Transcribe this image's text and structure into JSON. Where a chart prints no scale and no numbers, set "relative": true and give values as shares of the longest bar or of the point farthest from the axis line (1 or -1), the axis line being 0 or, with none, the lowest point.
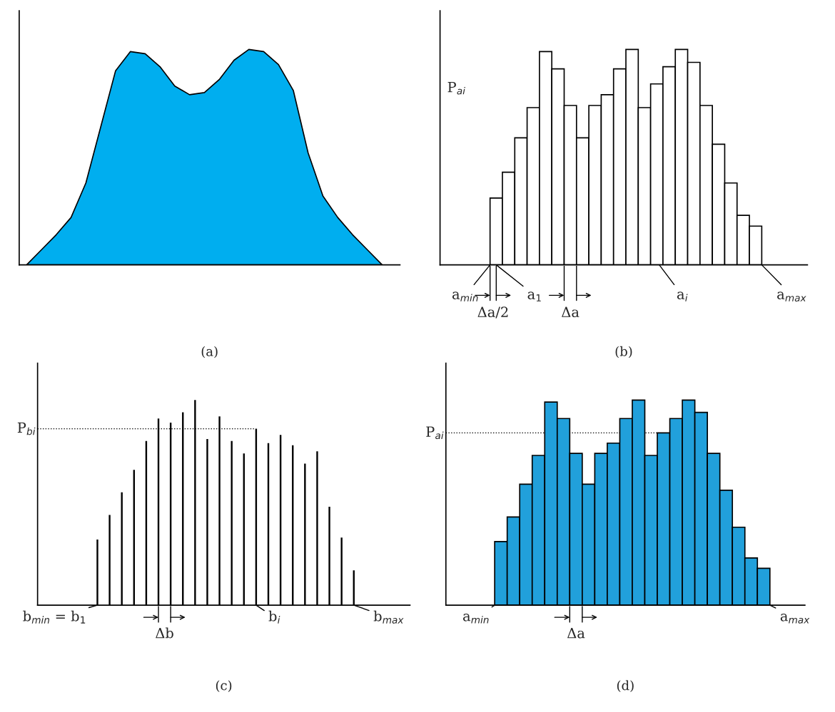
{
  "chart_data": [
    {
      "type": "area",
      "relative": true,
      "color": "#00aeef",
      "xlabel": "(a)",
      "tick_labels": false,
      "categories": [
        null,
        null,
        null,
        null,
        null,
        null,
        null,
        null,
        null,
        null,
        null,
        null,
        null,
        null,
        null,
        null,
        null,
        null,
        null,
        null,
        null,
        null,
        null,
        null,
        null
      ],
      "values": [
        0,
        0.07,
        0.14,
        0.22,
        0.38,
        0.64,
        0.9,
        0.99,
        0.98,
        0.92,
        0.83,
        0.79,
        0.8,
        0.86,
        0.95,
        1.0,
        0.99,
        0.93,
        0.81,
        0.52,
        0.32,
        0.22,
        0.14,
        0.07,
        0
      ]
    },
    {
      "type": "bar",
      "relative": true,
      "color": "#ffffff",
      "xlabel": "(b)",
      "ylabel": "P$_{ai}$",
      "tick_labels": false,
      "categories": [
        null,
        null,
        null,
        null,
        null,
        null,
        null,
        null,
        null,
        null,
        null,
        null,
        null,
        null,
        null,
        null,
        null,
        null,
        null,
        null,
        null,
        null
      ],
      "values": [
        0.31,
        0.43,
        0.59,
        0.73,
        0.99,
        0.91,
        0.74,
        0.59,
        0.74,
        0.79,
        0.91,
        1.0,
        0.73,
        0.84,
        0.92,
        1.0,
        0.94,
        0.74,
        0.56,
        0.38,
        0.23,
        0.18
      ],
      "annotations": [
        "a$_{min}$",
        "Δa/2",
        "a$_{1}$",
        "Δa",
        "a$_{i}$",
        "a$_{max}$"
      ]
    },
    {
      "type": "bar",
      "relative": true,
      "color": "#000000",
      "xlabel": "(c)",
      "tick_labels": false,
      "categories": [
        null,
        null,
        null,
        null,
        null,
        null,
        null,
        null,
        null,
        null,
        null,
        null,
        null,
        null,
        null,
        null,
        null,
        null,
        null,
        null,
        null,
        null
      ],
      "values": [
        0.32,
        0.44,
        0.55,
        0.66,
        0.8,
        0.91,
        0.89,
        0.94,
        1.0,
        0.81,
        0.92,
        0.8,
        0.74,
        0.86,
        0.79,
        0.83,
        0.78,
        0.69,
        0.75,
        0.48,
        0.33,
        0.17
      ],
      "ref_lines": [
        {
          "axis": "y",
          "value": 0.86,
          "label": "P$_{bi}$",
          "line_style": "dotted"
        }
      ],
      "annotations": [
        "b$_{min}$ = b$_{1}$",
        "Δb",
        "b$_{i}$",
        "b$_{max}$"
      ]
    },
    {
      "type": "bar",
      "relative": true,
      "color": "#21a0db",
      "xlabel": "(d)",
      "tick_labels": false,
      "categories": [
        null,
        null,
        null,
        null,
        null,
        null,
        null,
        null,
        null,
        null,
        null,
        null,
        null,
        null,
        null,
        null,
        null,
        null,
        null,
        null,
        null,
        null
      ],
      "values": [
        0.31,
        0.43,
        0.59,
        0.73,
        0.99,
        0.91,
        0.74,
        0.59,
        0.74,
        0.79,
        0.91,
        1.0,
        0.73,
        0.84,
        0.91,
        1.0,
        0.94,
        0.74,
        0.56,
        0.38,
        0.23,
        0.18
      ],
      "ref_lines": [
        {
          "axis": "y",
          "value": 0.84,
          "label": "P$_{ai}$",
          "line_style": "dotted"
        }
      ],
      "annotations": [
        "a$_{min}$",
        "Δa",
        "a$_{max}$"
      ]
    }
  ]
}
